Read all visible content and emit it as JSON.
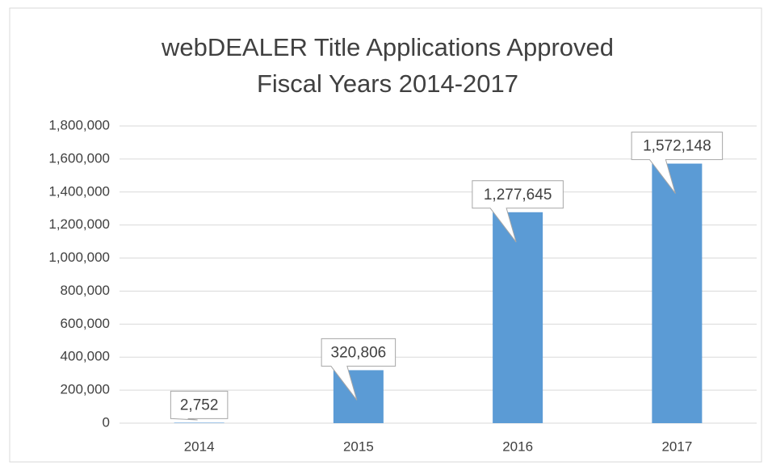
{
  "chart_data": {
    "type": "bar",
    "title": "webDEALER Title Applications Approved",
    "subtitle": "Fiscal Years 2014-2017",
    "categories": [
      "2014",
      "2015",
      "2016",
      "2017"
    ],
    "values": [
      2752,
      320806,
      1277645,
      1572148
    ],
    "value_labels": [
      "2,752",
      "320,806",
      "1,277,645",
      "1,572,148"
    ],
    "color": "#5b9bd5",
    "ylim": [
      0,
      1800000
    ],
    "yticks": [
      0,
      {
        "value": 200000,
        "label": "200,000"
      },
      {
        "value": 400000,
        "label": "400,000"
      },
      {
        "value": 600000,
        "label": "600,000"
      },
      {
        "value": 800000,
        "label": "800,000"
      },
      {
        "value": 1000000,
        "label": "1,000,000"
      },
      {
        "value": 1200000,
        "label": "1,200,000"
      },
      {
        "value": 1400000,
        "label": "1,400,000"
      },
      {
        "value": 1600000,
        "label": "1,600,000"
      },
      {
        "value": 1800000,
        "label": "1,800,000"
      }
    ],
    "grid": true
  }
}
